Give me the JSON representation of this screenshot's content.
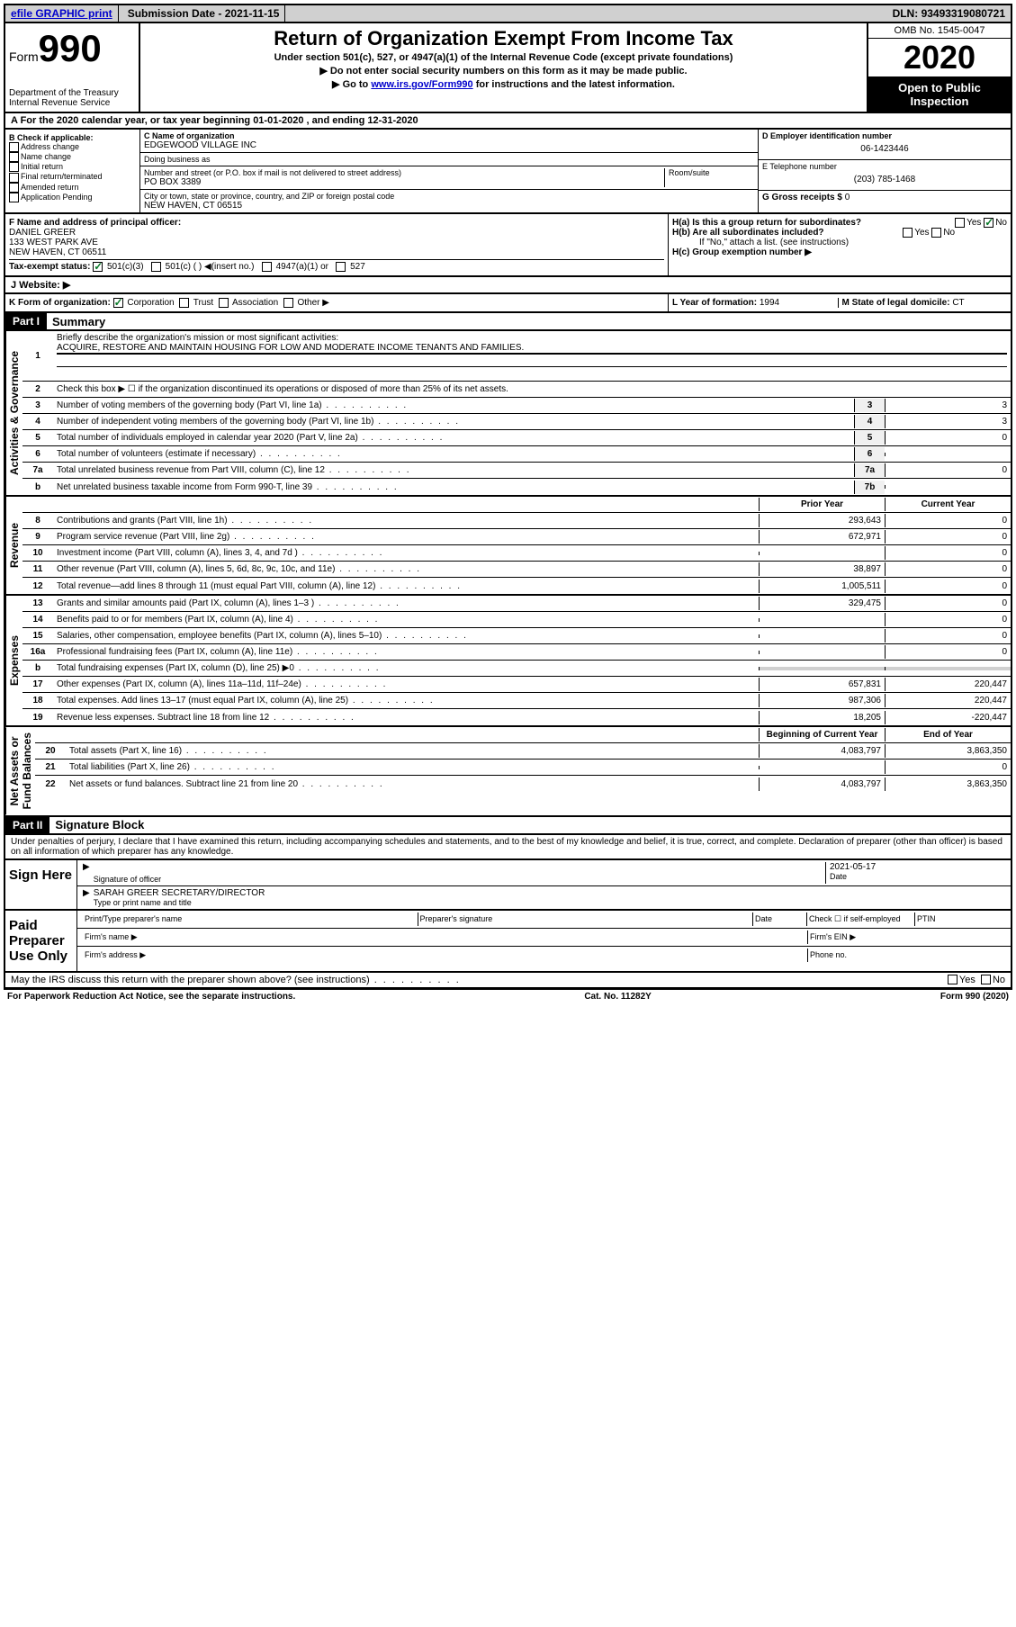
{
  "topbar": {
    "efile": "efile GRAPHIC print",
    "subdate_label": "Submission Date - ",
    "subdate": "2021-11-15",
    "dln_label": "DLN: ",
    "dln": "93493319080721"
  },
  "header": {
    "form_word": "Form",
    "form_num": "990",
    "dept": "Department of the Treasury\nInternal Revenue Service",
    "title": "Return of Organization Exempt From Income Tax",
    "sub1": "Under section 501(c), 527, or 4947(a)(1) of the Internal Revenue Code (except private foundations)",
    "sub2": "▶ Do not enter social security numbers on this form as it may be made public.",
    "sub3_pre": "▶ Go to ",
    "sub3_link": "www.irs.gov/Form990",
    "sub3_post": " for instructions and the latest information.",
    "omb": "OMB No. 1545-0047",
    "year": "2020",
    "open": "Open to Public Inspection"
  },
  "rowA": "A For the 2020 calendar year, or tax year beginning 01-01-2020   , and ending 12-31-2020",
  "boxB": {
    "label": "B Check if applicable:",
    "items": [
      "Address change",
      "Name change",
      "Initial return",
      "Final return/terminated",
      "Amended return",
      "Application Pending"
    ]
  },
  "boxC": {
    "name_label": "C Name of organization",
    "name": "EDGEWOOD VILLAGE INC",
    "dba_label": "Doing business as",
    "street_label": "Number and street (or P.O. box if mail is not delivered to street address)",
    "room_label": "Room/suite",
    "street": "PO BOX 3389",
    "city_label": "City or town, state or province, country, and ZIP or foreign postal code",
    "city": "NEW HAVEN, CT  06515"
  },
  "boxD": {
    "ein_label": "D Employer identification number",
    "ein": "06-1423446",
    "phone_label": "E Telephone number",
    "phone": "(203) 785-1468",
    "gross_label": "G Gross receipts $ ",
    "gross": "0"
  },
  "boxF": {
    "label": "F Name and address of principal officer:",
    "name": "DANIEL GREER",
    "addr1": "133 WEST PARK AVE",
    "addr2": "NEW HAVEN, CT  06511"
  },
  "boxH": {
    "a_label": "H(a)  Is this a group return for subordinates?",
    "b_label": "H(b)  Are all subordinates included?",
    "note": "If \"No,\" attach a list. (see instructions)",
    "c_label": "H(c)  Group exemption number ▶"
  },
  "taxstatus": {
    "label": "Tax-exempt status:",
    "opts": [
      "501(c)(3)",
      "501(c) (  ) ◀(insert no.)",
      "4947(a)(1) or",
      "527"
    ]
  },
  "website_label": "J   Website: ▶",
  "rowK": {
    "label": "K Form of organization:",
    "opts": [
      "Corporation",
      "Trust",
      "Association",
      "Other ▶"
    ],
    "L_label": "L Year of formation: ",
    "L_val": "1994",
    "M_label": "M State of legal domicile: ",
    "M_val": "CT"
  },
  "part1": {
    "num": "Part I",
    "title": "Summary"
  },
  "vert_labels": {
    "gov": "Activities & Governance",
    "rev": "Revenue",
    "exp": "Expenses",
    "net": "Net Assets or\nFund Balances"
  },
  "summary": {
    "l1_label": "Briefly describe the organization's mission or most significant activities:",
    "l1_val": "ACQUIRE, RESTORE AND MAINTAIN HOUSING FOR LOW AND MODERATE INCOME TENANTS AND FAMILIES.",
    "l2": "Check this box ▶ ☐ if the organization discontinued its operations or disposed of more than 25% of its net assets.",
    "l3": "Number of voting members of the governing body (Part VI, line 1a)",
    "l4": "Number of independent voting members of the governing body (Part VI, line 1b)",
    "l5": "Total number of individuals employed in calendar year 2020 (Part V, line 2a)",
    "l6": "Total number of volunteers (estimate if necessary)",
    "l7a": "Total unrelated business revenue from Part VIII, column (C), line 12",
    "l7b": "Net unrelated business taxable income from Form 990-T, line 39",
    "v3": "3",
    "v4": "3",
    "v5": "0",
    "v6": "",
    "v7a": "0",
    "v7b": ""
  },
  "cols": {
    "prior": "Prior Year",
    "current": "Current Year",
    "begin": "Beginning of Current Year",
    "end": "End of Year"
  },
  "revenue": [
    {
      "n": "8",
      "t": "Contributions and grants (Part VIII, line 1h)",
      "p": "293,643",
      "c": "0"
    },
    {
      "n": "9",
      "t": "Program service revenue (Part VIII, line 2g)",
      "p": "672,971",
      "c": "0"
    },
    {
      "n": "10",
      "t": "Investment income (Part VIII, column (A), lines 3, 4, and 7d )",
      "p": "",
      "c": "0"
    },
    {
      "n": "11",
      "t": "Other revenue (Part VIII, column (A), lines 5, 6d, 8c, 9c, 10c, and 11e)",
      "p": "38,897",
      "c": "0"
    },
    {
      "n": "12",
      "t": "Total revenue—add lines 8 through 11 (must equal Part VIII, column (A), line 12)",
      "p": "1,005,511",
      "c": "0"
    }
  ],
  "expenses": [
    {
      "n": "13",
      "t": "Grants and similar amounts paid (Part IX, column (A), lines 1–3 )",
      "p": "329,475",
      "c": "0"
    },
    {
      "n": "14",
      "t": "Benefits paid to or for members (Part IX, column (A), line 4)",
      "p": "",
      "c": "0"
    },
    {
      "n": "15",
      "t": "Salaries, other compensation, employee benefits (Part IX, column (A), lines 5–10)",
      "p": "",
      "c": "0"
    },
    {
      "n": "16a",
      "t": "Professional fundraising fees (Part IX, column (A), line 11e)",
      "p": "",
      "c": "0"
    },
    {
      "n": "b",
      "t": "Total fundraising expenses (Part IX, column (D), line 25) ▶0",
      "p": "shade",
      "c": "shade"
    },
    {
      "n": "17",
      "t": "Other expenses (Part IX, column (A), lines 11a–11d, 11f–24e)",
      "p": "657,831",
      "c": "220,447"
    },
    {
      "n": "18",
      "t": "Total expenses. Add lines 13–17 (must equal Part IX, column (A), line 25)",
      "p": "987,306",
      "c": "220,447"
    },
    {
      "n": "19",
      "t": "Revenue less expenses. Subtract line 18 from line 12",
      "p": "18,205",
      "c": "-220,447"
    }
  ],
  "netassets": [
    {
      "n": "20",
      "t": "Total assets (Part X, line 16)",
      "p": "4,083,797",
      "c": "3,863,350"
    },
    {
      "n": "21",
      "t": "Total liabilities (Part X, line 26)",
      "p": "",
      "c": "0"
    },
    {
      "n": "22",
      "t": "Net assets or fund balances. Subtract line 21 from line 20",
      "p": "4,083,797",
      "c": "3,863,350"
    }
  ],
  "part2": {
    "num": "Part II",
    "title": "Signature Block"
  },
  "declare": "Under penalties of perjury, I declare that I have examined this return, including accompanying schedules and statements, and to the best of my knowledge and belief, it is true, correct, and complete. Declaration of preparer (other than officer) is based on all information of which preparer has any knowledge.",
  "sign": {
    "here": "Sign Here",
    "sig_label": "Signature of officer",
    "date_label": "Date",
    "date": "2021-05-17",
    "name": "SARAH GREER  SECRETARY/DIRECTOR",
    "name_label": "Type or print name and title"
  },
  "paid": {
    "label": "Paid Preparer Use Only",
    "r1": [
      "Print/Type preparer's name",
      "Preparer's signature",
      "Date",
      "Check ☐ if self-employed",
      "PTIN"
    ],
    "r2_label": "Firm's name  ▶",
    "r2_right": "Firm's EIN ▶",
    "r3_label": "Firm's address ▶",
    "r3_right": "Phone no."
  },
  "irs_q": "May the IRS discuss this return with the preparer shown above? (see instructions)",
  "footer": {
    "left": "For Paperwork Reduction Act Notice, see the separate instructions.",
    "mid": "Cat. No. 11282Y",
    "right": "Form 990 (2020)"
  }
}
